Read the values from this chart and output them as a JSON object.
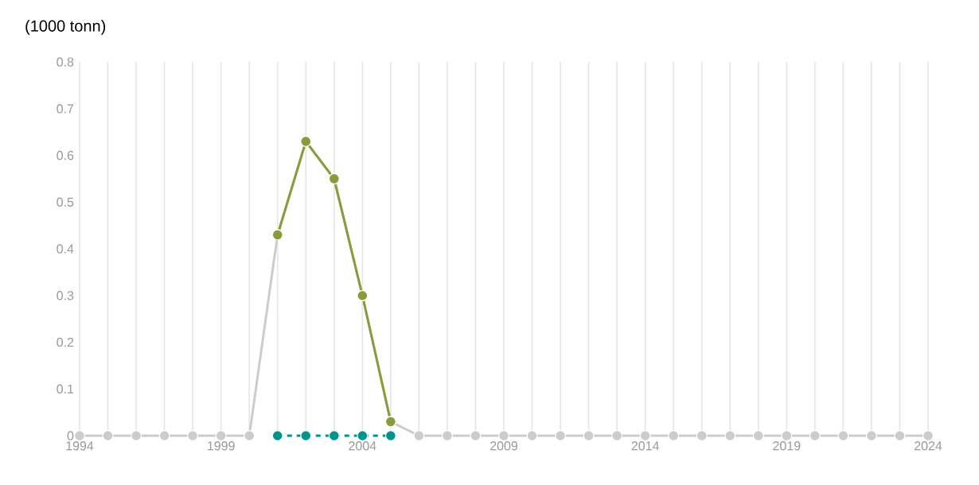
{
  "chart_data": {
    "type": "line",
    "ylabel": "(1000 tonn)",
    "x": [
      1994,
      1995,
      1996,
      1997,
      1998,
      1999,
      2000,
      2001,
      2002,
      2003,
      2004,
      2005,
      2006,
      2007,
      2008,
      2009,
      2010,
      2011,
      2012,
      2013,
      2014,
      2015,
      2016,
      2017,
      2018,
      2019,
      2020,
      2021,
      2022,
      2023,
      2024
    ],
    "series": [
      {
        "color": "#cccccc",
        "line_style": "solid",
        "values": [
          0,
          0,
          0,
          0,
          0,
          0,
          0,
          0.43,
          0.63,
          0.55,
          0.3,
          0.03,
          0,
          0,
          0,
          0,
          0,
          0,
          0,
          0,
          0,
          0,
          0,
          0,
          0,
          0,
          0,
          0,
          0,
          0,
          0
        ]
      },
      {
        "color": "#8c9a3c",
        "line_style": "solid",
        "values": [
          null,
          null,
          null,
          null,
          null,
          null,
          null,
          0.43,
          0.63,
          0.55,
          0.3,
          0.03,
          null,
          null,
          null,
          null,
          null,
          null,
          null,
          null,
          null,
          null,
          null,
          null,
          null,
          null,
          null,
          null,
          null,
          null,
          null
        ]
      },
      {
        "color": "#00948f",
        "line_style": "dashed",
        "values": [
          null,
          null,
          null,
          null,
          null,
          null,
          null,
          0,
          0,
          0,
          0,
          0,
          null,
          null,
          null,
          null,
          null,
          null,
          null,
          null,
          null,
          null,
          null,
          null,
          null,
          null,
          null,
          null,
          null,
          null,
          null
        ]
      }
    ],
    "xlim": [
      1994,
      2024
    ],
    "xticks": [
      1994,
      {
        "value": 1995,
        "label": null
      },
      {
        "value": 1996,
        "label": null
      },
      {
        "value": 1997,
        "label": null
      },
      {
        "value": 1998,
        "label": null
      },
      1999,
      {
        "value": 2000,
        "label": null
      },
      {
        "value": 2001,
        "label": null
      },
      {
        "value": 2002,
        "label": null
      },
      {
        "value": 2003,
        "label": null
      },
      2004,
      {
        "value": 2005,
        "label": null
      },
      {
        "value": 2006,
        "label": null
      },
      {
        "value": 2007,
        "label": null
      },
      {
        "value": 2008,
        "label": null
      },
      2009,
      {
        "value": 2010,
        "label": null
      },
      {
        "value": 2011,
        "label": null
      },
      {
        "value": 2012,
        "label": null
      },
      {
        "value": 2013,
        "label": null
      },
      2014,
      {
        "value": 2015,
        "label": null
      },
      {
        "value": 2016,
        "label": null
      },
      {
        "value": 2017,
        "label": null
      },
      {
        "value": 2018,
        "label": null
      },
      2019,
      {
        "value": 2020,
        "label": null
      },
      {
        "value": 2021,
        "label": null
      },
      {
        "value": 2022,
        "label": null
      },
      {
        "value": 2023,
        "label": null
      },
      2024
    ],
    "ylim": [
      0,
      0.8
    ],
    "yticks": [
      0,
      0.1,
      0.2,
      0.3,
      0.4,
      0.5,
      0.6,
      0.7,
      0.8
    ],
    "grid": "x",
    "marker": "circle"
  }
}
